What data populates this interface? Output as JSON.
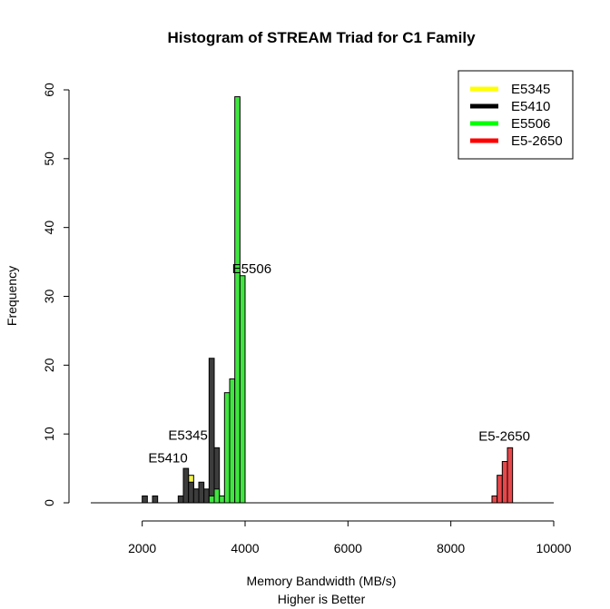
{
  "chart_data": {
    "type": "bar",
    "title": "Histogram of STREAM Triad for C1 Family",
    "xlabel": "Memory Bandwidth (MB/s)",
    "xlabel2": "Higher is Better",
    "ylabel": "Frequency",
    "xlim": [
      1000,
      10000
    ],
    "ylim": [
      0,
      60
    ],
    "x_ticks": [
      2000,
      4000,
      6000,
      8000,
      10000
    ],
    "y_ticks": [
      0,
      10,
      20,
      30,
      40,
      50,
      60
    ],
    "bin_width": 100,
    "legend_position": "top-right",
    "series": [
      {
        "name": "E5345",
        "color": "#ffff00",
        "fill": "#f2f24e",
        "bins": [
          {
            "x": 2900,
            "count": 4
          },
          {
            "x": 3000,
            "count": 2
          }
        ]
      },
      {
        "name": "E5410",
        "color": "#000000",
        "fill": "#3d3d3d",
        "bins": [
          {
            "x": 2000,
            "count": 1
          },
          {
            "x": 2200,
            "count": 1
          },
          {
            "x": 2700,
            "count": 1
          },
          {
            "x": 2800,
            "count": 5
          },
          {
            "x": 2900,
            "count": 3
          },
          {
            "x": 3000,
            "count": 2
          },
          {
            "x": 3100,
            "count": 3
          },
          {
            "x": 3200,
            "count": 2
          },
          {
            "x": 3300,
            "count": 21
          },
          {
            "x": 3400,
            "count": 8
          }
        ]
      },
      {
        "name": "E5506",
        "color": "#00ff00",
        "fill": "#3fe63f",
        "bins": [
          {
            "x": 3300,
            "count": 1
          },
          {
            "x": 3400,
            "count": 2
          },
          {
            "x": 3500,
            "count": 1
          },
          {
            "x": 3600,
            "count": 16
          },
          {
            "x": 3700,
            "count": 18
          },
          {
            "x": 3800,
            "count": 59
          },
          {
            "x": 3900,
            "count": 33
          }
        ]
      },
      {
        "name": "E5-2650",
        "color": "#ff0000",
        "fill": "#e8474a",
        "bins": [
          {
            "x": 8800,
            "count": 1
          },
          {
            "x": 8900,
            "count": 4
          },
          {
            "x": 9000,
            "count": 6
          },
          {
            "x": 9100,
            "count": 8
          }
        ]
      }
    ],
    "annotations": [
      {
        "text": "E5506",
        "x": 4130,
        "y": 34
      },
      {
        "text": "E5345",
        "x": 2890,
        "y": 9.8
      },
      {
        "text": "E5410",
        "x": 2500,
        "y": 6.5
      },
      {
        "text": "E5-2650",
        "x": 9040,
        "y": 9.7
      }
    ]
  }
}
